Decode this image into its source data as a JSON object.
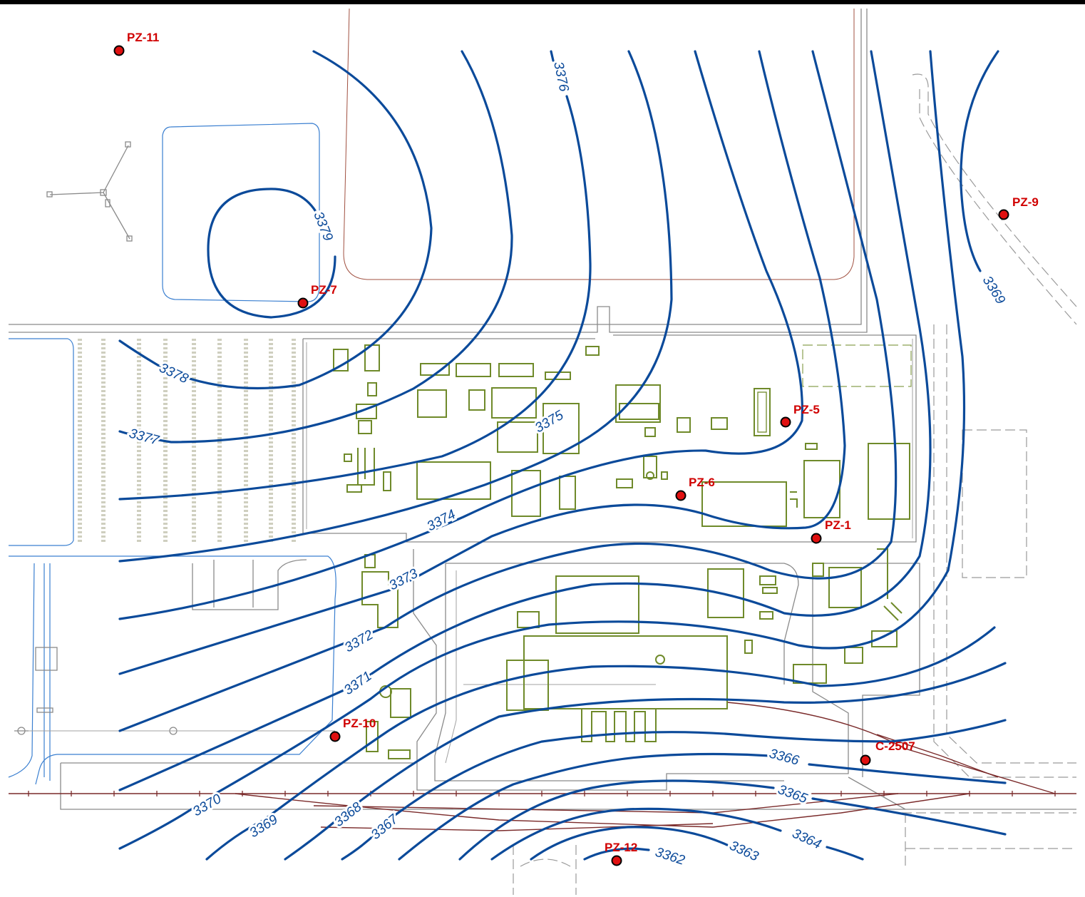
{
  "map": {
    "contour_color": "#0b4a9a",
    "well_color": "#e01010",
    "building_color": "#6f8a2a",
    "contours": [
      {
        "value": "3379",
        "label": "3379"
      },
      {
        "value": "3378",
        "label": "3378"
      },
      {
        "value": "3377",
        "label": "3377"
      },
      {
        "value": "3376",
        "label": "3376"
      },
      {
        "value": "3375",
        "label": "3375"
      },
      {
        "value": "3374",
        "label": "3374"
      },
      {
        "value": "3373",
        "label": "3373"
      },
      {
        "value": "3372",
        "label": "3372"
      },
      {
        "value": "3371",
        "label": "3371"
      },
      {
        "value": "3370",
        "label": "3370"
      },
      {
        "value": "3369",
        "label": "3369"
      },
      {
        "value": "3369b",
        "label": "3369"
      },
      {
        "value": "3368",
        "label": "3368"
      },
      {
        "value": "3367",
        "label": "3367"
      },
      {
        "value": "3366",
        "label": "3366"
      },
      {
        "value": "3365",
        "label": "3365"
      },
      {
        "value": "3364",
        "label": "3364"
      },
      {
        "value": "3363",
        "label": "3363"
      },
      {
        "value": "3362",
        "label": "3362"
      }
    ],
    "wells": [
      {
        "id": "PZ-11",
        "label": "PZ-11"
      },
      {
        "id": "PZ-7",
        "label": "PZ-7"
      },
      {
        "id": "PZ-9",
        "label": "PZ-9"
      },
      {
        "id": "PZ-5",
        "label": "PZ-5"
      },
      {
        "id": "PZ-6",
        "label": "PZ-6"
      },
      {
        "id": "PZ-1",
        "label": "PZ-1"
      },
      {
        "id": "PZ-10",
        "label": "PZ-10"
      },
      {
        "id": "C-2507",
        "label": "C-2507"
      },
      {
        "id": "PZ-12",
        "label": "PZ-12"
      }
    ]
  }
}
